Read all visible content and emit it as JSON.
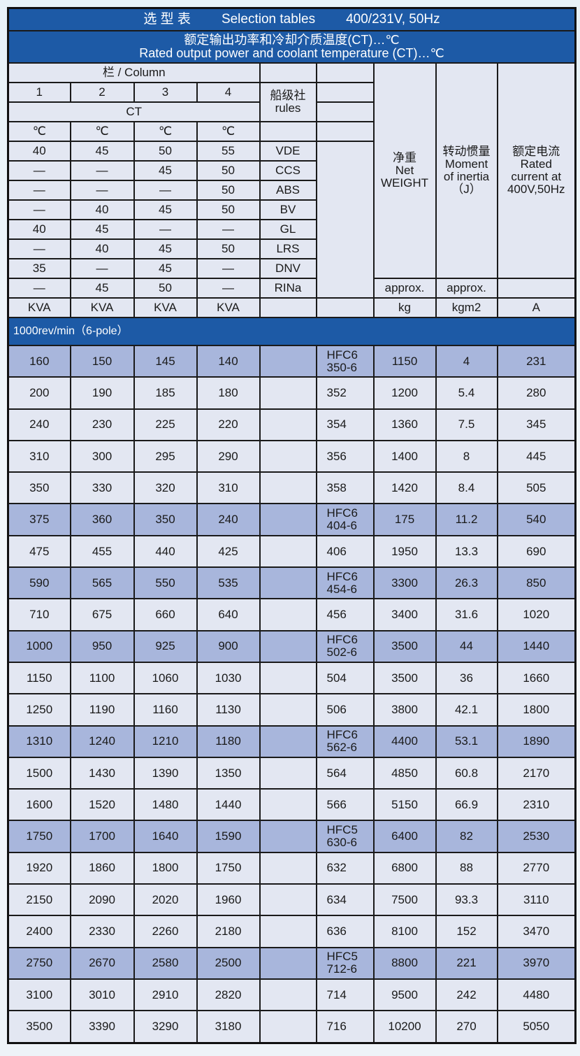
{
  "header": {
    "title_cn": "选 型 表",
    "title_en": "Selection tables",
    "title_spec": "400/231V, 50Hz",
    "subtitle_cn": "额定输出功率和冷却介质温度(CT)…℃",
    "subtitle_en": "Rated output power and coolant temperature (CT)…℃",
    "column_label": "栏 / Column",
    "columns": [
      "1",
      "2",
      "3",
      "4"
    ],
    "ct_label": "CT",
    "rules_cn": "船级社",
    "rules_en": "rules",
    "degree": "℃",
    "weight_cn": "净重",
    "weight_en1": "Net",
    "weight_en2": "WEIGHT",
    "inertia_cn": "转动惯量",
    "inertia_en1": "Moment",
    "inertia_en2": "of inertia",
    "inertia_en3": "（J）",
    "current_cn": "额定电流",
    "current_en1": "Rated",
    "current_en2": "current at",
    "current_en3": "400V,50Hz",
    "approx": "approx.",
    "units": [
      "KVA",
      "KVA",
      "KVA",
      "KVA",
      "",
      "",
      "kg",
      "kgm2",
      "A"
    ]
  },
  "rules": [
    {
      "c": [
        "40",
        "45",
        "50",
        "55"
      ],
      "name": "VDE"
    },
    {
      "c": [
        "—",
        "—",
        "45",
        "50"
      ],
      "name": "CCS"
    },
    {
      "c": [
        "—",
        "—",
        "—",
        "50"
      ],
      "name": "ABS"
    },
    {
      "c": [
        "—",
        "40",
        "45",
        "50"
      ],
      "name": "BV"
    },
    {
      "c": [
        "40",
        "45",
        "—",
        "—"
      ],
      "name": "GL"
    },
    {
      "c": [
        "—",
        "40",
        "45",
        "50"
      ],
      "name": "LRS"
    },
    {
      "c": [
        "35",
        "—",
        "45",
        "—"
      ],
      "name": "DNV"
    },
    {
      "c": [
        "—",
        "45",
        "50",
        "—"
      ],
      "name": "RINa"
    }
  ],
  "section": "1000rev/min（6-pole）",
  "colors": {
    "blue": "#1d5aa6",
    "cell": "#e3e7f2",
    "highlight": "#a8b6dc"
  },
  "rows": [
    {
      "hl": true,
      "c": [
        "160",
        "150",
        "145",
        "140",
        "",
        "HFC6\n350-6",
        "1150",
        "4",
        "231"
      ]
    },
    {
      "hl": false,
      "c": [
        "200",
        "190",
        "185",
        "180",
        "",
        "352",
        "1200",
        "5.4",
        "280"
      ]
    },
    {
      "hl": false,
      "c": [
        "240",
        "230",
        "225",
        "220",
        "",
        "354",
        "1360",
        "7.5",
        "345"
      ]
    },
    {
      "hl": false,
      "c": [
        "310",
        "300",
        "295",
        "290",
        "",
        "356",
        "1400",
        "8",
        "445"
      ]
    },
    {
      "hl": false,
      "c": [
        "350",
        "330",
        "320",
        "310",
        "",
        "358",
        "1420",
        "8.4",
        "505"
      ]
    },
    {
      "hl": true,
      "c": [
        "375",
        "360",
        "350",
        "240",
        "",
        "HFC6\n404-6",
        "175",
        "11.2",
        "540"
      ]
    },
    {
      "hl": false,
      "c": [
        "475",
        "455",
        "440",
        "425",
        "",
        "406",
        "1950",
        "13.3",
        "690"
      ]
    },
    {
      "hl": true,
      "c": [
        "590",
        "565",
        "550",
        "535",
        "",
        "HFC6\n454-6",
        "3300",
        "26.3",
        "850"
      ]
    },
    {
      "hl": false,
      "c": [
        "710",
        "675",
        "660",
        "640",
        "",
        "456",
        "3400",
        "31.6",
        "1020"
      ]
    },
    {
      "hl": true,
      "c": [
        "1000",
        "950",
        "925",
        "900",
        "",
        "HFC6\n502-6",
        "3500",
        "44",
        "1440"
      ]
    },
    {
      "hl": false,
      "c": [
        "1150",
        "1100",
        "1060",
        "1030",
        "",
        "504",
        "3500",
        "36",
        "1660"
      ]
    },
    {
      "hl": false,
      "c": [
        "1250",
        "1190",
        "1160",
        "1130",
        "",
        "506",
        "3800",
        "42.1",
        "1800"
      ]
    },
    {
      "hl": true,
      "c": [
        "1310",
        "1240",
        "1210",
        "1180",
        "",
        "HFC6\n562-6",
        "4400",
        "53.1",
        "1890"
      ]
    },
    {
      "hl": false,
      "c": [
        "1500",
        "1430",
        "1390",
        "1350",
        "",
        "564",
        "4850",
        "60.8",
        "2170"
      ]
    },
    {
      "hl": false,
      "c": [
        "1600",
        "1520",
        "1480",
        "1440",
        "",
        "566",
        "5150",
        "66.9",
        "2310"
      ]
    },
    {
      "hl": true,
      "c": [
        "1750",
        "1700",
        "1640",
        "1590",
        "",
        "HFC5\n630-6",
        "6400",
        "82",
        "2530"
      ]
    },
    {
      "hl": false,
      "c": [
        "1920",
        "1860",
        "1800",
        "1750",
        "",
        "632",
        "6800",
        "88",
        "2770"
      ]
    },
    {
      "hl": false,
      "c": [
        "2150",
        "2090",
        "2020",
        "1960",
        "",
        "634",
        "7500",
        "93.3",
        "3110"
      ]
    },
    {
      "hl": false,
      "c": [
        "2400",
        "2330",
        "2260",
        "2180",
        "",
        "636",
        "8100",
        "152",
        "3470"
      ]
    },
    {
      "hl": true,
      "c": [
        "2750",
        "2670",
        "2580",
        "2500",
        "",
        "HFC5\n712-6",
        "8800",
        "221",
        "3970"
      ]
    },
    {
      "hl": false,
      "c": [
        "3100",
        "3010",
        "2910",
        "2820",
        "",
        "714",
        "9500",
        "242",
        "4480"
      ]
    },
    {
      "hl": false,
      "c": [
        "3500",
        "3390",
        "3290",
        "3180",
        "",
        "716",
        "10200",
        "270",
        "5050"
      ]
    }
  ]
}
